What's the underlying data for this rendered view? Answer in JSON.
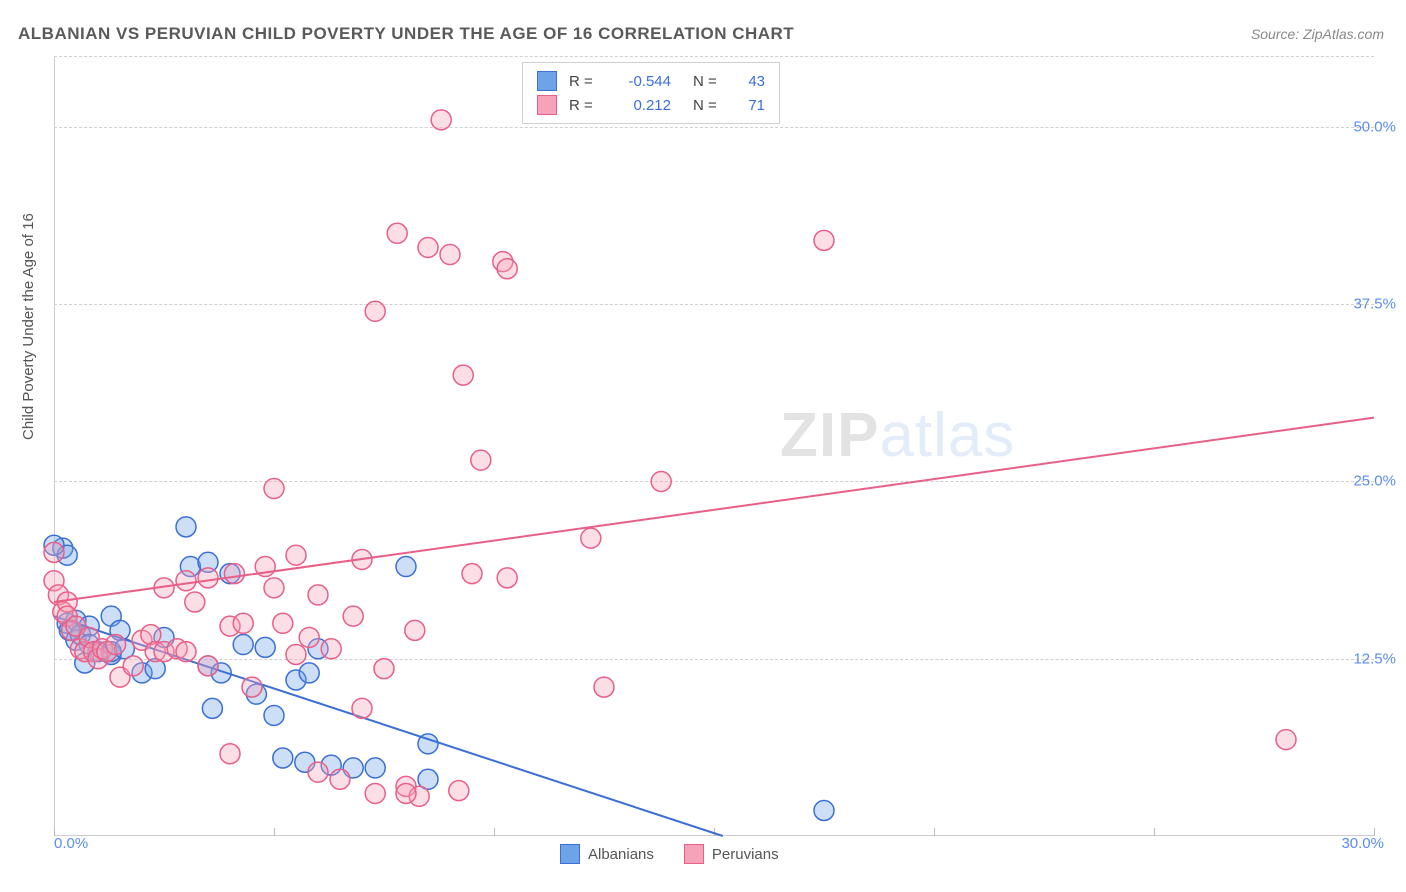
{
  "title": "ALBANIAN VS PERUVIAN CHILD POVERTY UNDER THE AGE OF 16 CORRELATION CHART",
  "source": "Source: ZipAtlas.com",
  "ylabel": "Child Poverty Under the Age of 16",
  "watermark_zip": "ZIP",
  "watermark_atlas": "atlas",
  "chart": {
    "type": "scatter",
    "background_color": "#ffffff",
    "grid_color": "#d0d0d0",
    "axis_color": "#cccccc",
    "label_color": "#555555",
    "tick_color": "#5b8def",
    "xlim": [
      0,
      30
    ],
    "ylim": [
      0,
      55
    ],
    "xticks": [
      0,
      5,
      10,
      15,
      20,
      25,
      30
    ],
    "xtick_labels": {
      "0": "0.0%",
      "30": "30.0%"
    },
    "yticks": [
      12.5,
      25.0,
      37.5,
      50.0
    ],
    "ytick_labels": [
      "12.5%",
      "25.0%",
      "37.5%",
      "50.0%"
    ],
    "marker_radius": 10,
    "marker_fill_opacity": 0.35,
    "marker_stroke_width": 1.5,
    "line_width": 2,
    "series": [
      {
        "name": "Albanians",
        "color": "#6fa3e8",
        "stroke": "#3b6fd6",
        "r": -0.544,
        "n": 43,
        "regression": {
          "x1": 0,
          "y1": 15.5,
          "x2": 15.2,
          "y2": 0
        },
        "points": [
          [
            0.2,
            20.3
          ],
          [
            0.3,
            19.8
          ],
          [
            0.0,
            20.5
          ],
          [
            0.3,
            15.0
          ],
          [
            0.35,
            14.5
          ],
          [
            0.5,
            15.2
          ],
          [
            0.5,
            13.8
          ],
          [
            0.6,
            14.2
          ],
          [
            0.8,
            14.8
          ],
          [
            0.8,
            13.5
          ],
          [
            0.7,
            12.2
          ],
          [
            1.0,
            13.0
          ],
          [
            1.3,
            15.5
          ],
          [
            1.3,
            12.8
          ],
          [
            1.3,
            13.0
          ],
          [
            1.5,
            14.5
          ],
          [
            1.6,
            13.2
          ],
          [
            2.0,
            11.5
          ],
          [
            2.3,
            11.8
          ],
          [
            2.5,
            14.0
          ],
          [
            3.0,
            21.8
          ],
          [
            3.1,
            19.0
          ],
          [
            3.5,
            19.3
          ],
          [
            3.5,
            12.0
          ],
          [
            3.6,
            9.0
          ],
          [
            3.8,
            11.5
          ],
          [
            4.0,
            18.5
          ],
          [
            4.3,
            13.5
          ],
          [
            4.6,
            10.0
          ],
          [
            4.8,
            13.3
          ],
          [
            5.0,
            8.5
          ],
          [
            5.2,
            5.5
          ],
          [
            5.5,
            11.0
          ],
          [
            5.7,
            5.2
          ],
          [
            5.8,
            11.5
          ],
          [
            6.0,
            13.2
          ],
          [
            6.3,
            5.0
          ],
          [
            6.8,
            4.8
          ],
          [
            7.3,
            4.8
          ],
          [
            8.0,
            19.0
          ],
          [
            8.5,
            6.5
          ],
          [
            8.5,
            4.0
          ],
          [
            17.5,
            1.8
          ]
        ]
      },
      {
        "name": "Peruvians",
        "color": "#f5a3b8",
        "stroke": "#e85f88",
        "r": 0.212,
        "n": 71,
        "regression": {
          "x1": 0,
          "y1": 16.5,
          "x2": 30,
          "y2": 29.5
        },
        "points": [
          [
            0.0,
            18.0
          ],
          [
            0.0,
            20.0
          ],
          [
            0.1,
            17.0
          ],
          [
            0.2,
            15.8
          ],
          [
            0.3,
            16.5
          ],
          [
            0.3,
            15.5
          ],
          [
            0.4,
            14.5
          ],
          [
            0.5,
            14.8
          ],
          [
            0.6,
            13.2
          ],
          [
            0.7,
            13.0
          ],
          [
            0.8,
            14.0
          ],
          [
            0.9,
            13.0
          ],
          [
            1.0,
            12.5
          ],
          [
            1.1,
            13.2
          ],
          [
            1.2,
            13.0
          ],
          [
            1.4,
            13.5
          ],
          [
            1.5,
            11.2
          ],
          [
            1.8,
            12.0
          ],
          [
            2.0,
            13.8
          ],
          [
            2.2,
            14.2
          ],
          [
            2.3,
            13.0
          ],
          [
            2.5,
            13.0
          ],
          [
            2.5,
            17.5
          ],
          [
            2.8,
            13.2
          ],
          [
            3.0,
            18.0
          ],
          [
            3.0,
            13.0
          ],
          [
            3.2,
            16.5
          ],
          [
            3.5,
            12.0
          ],
          [
            3.5,
            18.2
          ],
          [
            4.0,
            14.8
          ],
          [
            4.1,
            18.5
          ],
          [
            4.3,
            15.0
          ],
          [
            4.5,
            10.5
          ],
          [
            4.8,
            19.0
          ],
          [
            5.0,
            17.5
          ],
          [
            5.0,
            24.5
          ],
          [
            5.2,
            15.0
          ],
          [
            5.5,
            12.8
          ],
          [
            5.5,
            19.8
          ],
          [
            5.8,
            14.0
          ],
          [
            6.0,
            17.0
          ],
          [
            6.3,
            13.2
          ],
          [
            6.8,
            15.5
          ],
          [
            7.0,
            19.5
          ],
          [
            7.0,
            9.0
          ],
          [
            7.3,
            3.0
          ],
          [
            7.3,
            37.0
          ],
          [
            7.5,
            11.8
          ],
          [
            7.8,
            42.5
          ],
          [
            8.0,
            3.5
          ],
          [
            8.2,
            14.5
          ],
          [
            8.3,
            2.8
          ],
          [
            8.5,
            41.5
          ],
          [
            8.8,
            50.5
          ],
          [
            9.0,
            41.0
          ],
          [
            9.2,
            3.2
          ],
          [
            9.3,
            32.5
          ],
          [
            9.5,
            18.5
          ],
          [
            9.7,
            26.5
          ],
          [
            10.2,
            40.5
          ],
          [
            10.3,
            18.2
          ],
          [
            10.3,
            40.0
          ],
          [
            12.2,
            21.0
          ],
          [
            12.5,
            10.5
          ],
          [
            13.8,
            25.0
          ],
          [
            17.5,
            42.0
          ],
          [
            28.0,
            6.8
          ],
          [
            6.0,
            4.5
          ],
          [
            6.5,
            4.0
          ],
          [
            4.0,
            5.8
          ],
          [
            8.0,
            3.0
          ]
        ]
      }
    ],
    "legend_top": {
      "r_label": "R =",
      "n_label": "N ="
    },
    "legend_bottom": {
      "items": [
        "Albanians",
        "Peruvians"
      ]
    }
  }
}
